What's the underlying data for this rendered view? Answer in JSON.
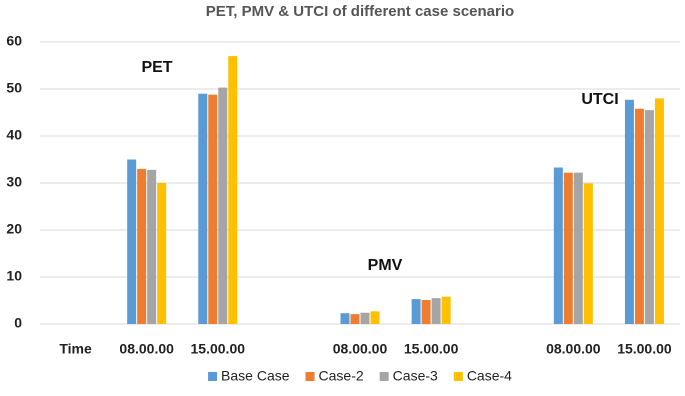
{
  "chart_data": {
    "type": "bar",
    "title": "PET, PMV & UTCI of different case scenario",
    "categories": [
      "Time",
      "08.00.00",
      "15.00.00",
      null,
      "08.00.00",
      "15.00.00",
      null,
      "08.00.00",
      "15.00.00"
    ],
    "series": [
      {
        "name": "Base Case",
        "color": "#5b9bd5",
        "values": [
          null,
          35,
          49,
          null,
          2.3,
          5.3,
          null,
          33.3,
          47.7
        ]
      },
      {
        "name": "Case-2",
        "color": "#ed7d31",
        "values": [
          null,
          33,
          48.8,
          null,
          2.1,
          5.1,
          null,
          32.2,
          45.8
        ]
      },
      {
        "name": "Case-3",
        "color": "#a5a5a5",
        "values": [
          null,
          32.8,
          50.3,
          null,
          2.4,
          5.5,
          null,
          32.2,
          45.5
        ]
      },
      {
        "name": "Case-4",
        "color": "#ffc000",
        "values": [
          null,
          30,
          57,
          null,
          2.7,
          5.8,
          null,
          29.9,
          48
        ]
      }
    ],
    "annotations": [
      "PET",
      "PMV",
      "UTCI"
    ],
    "ylim": [
      0,
      60
    ],
    "yticks": [
      0,
      10,
      20,
      30,
      40,
      50,
      60
    ],
    "grid": true,
    "legend": "bottom"
  }
}
